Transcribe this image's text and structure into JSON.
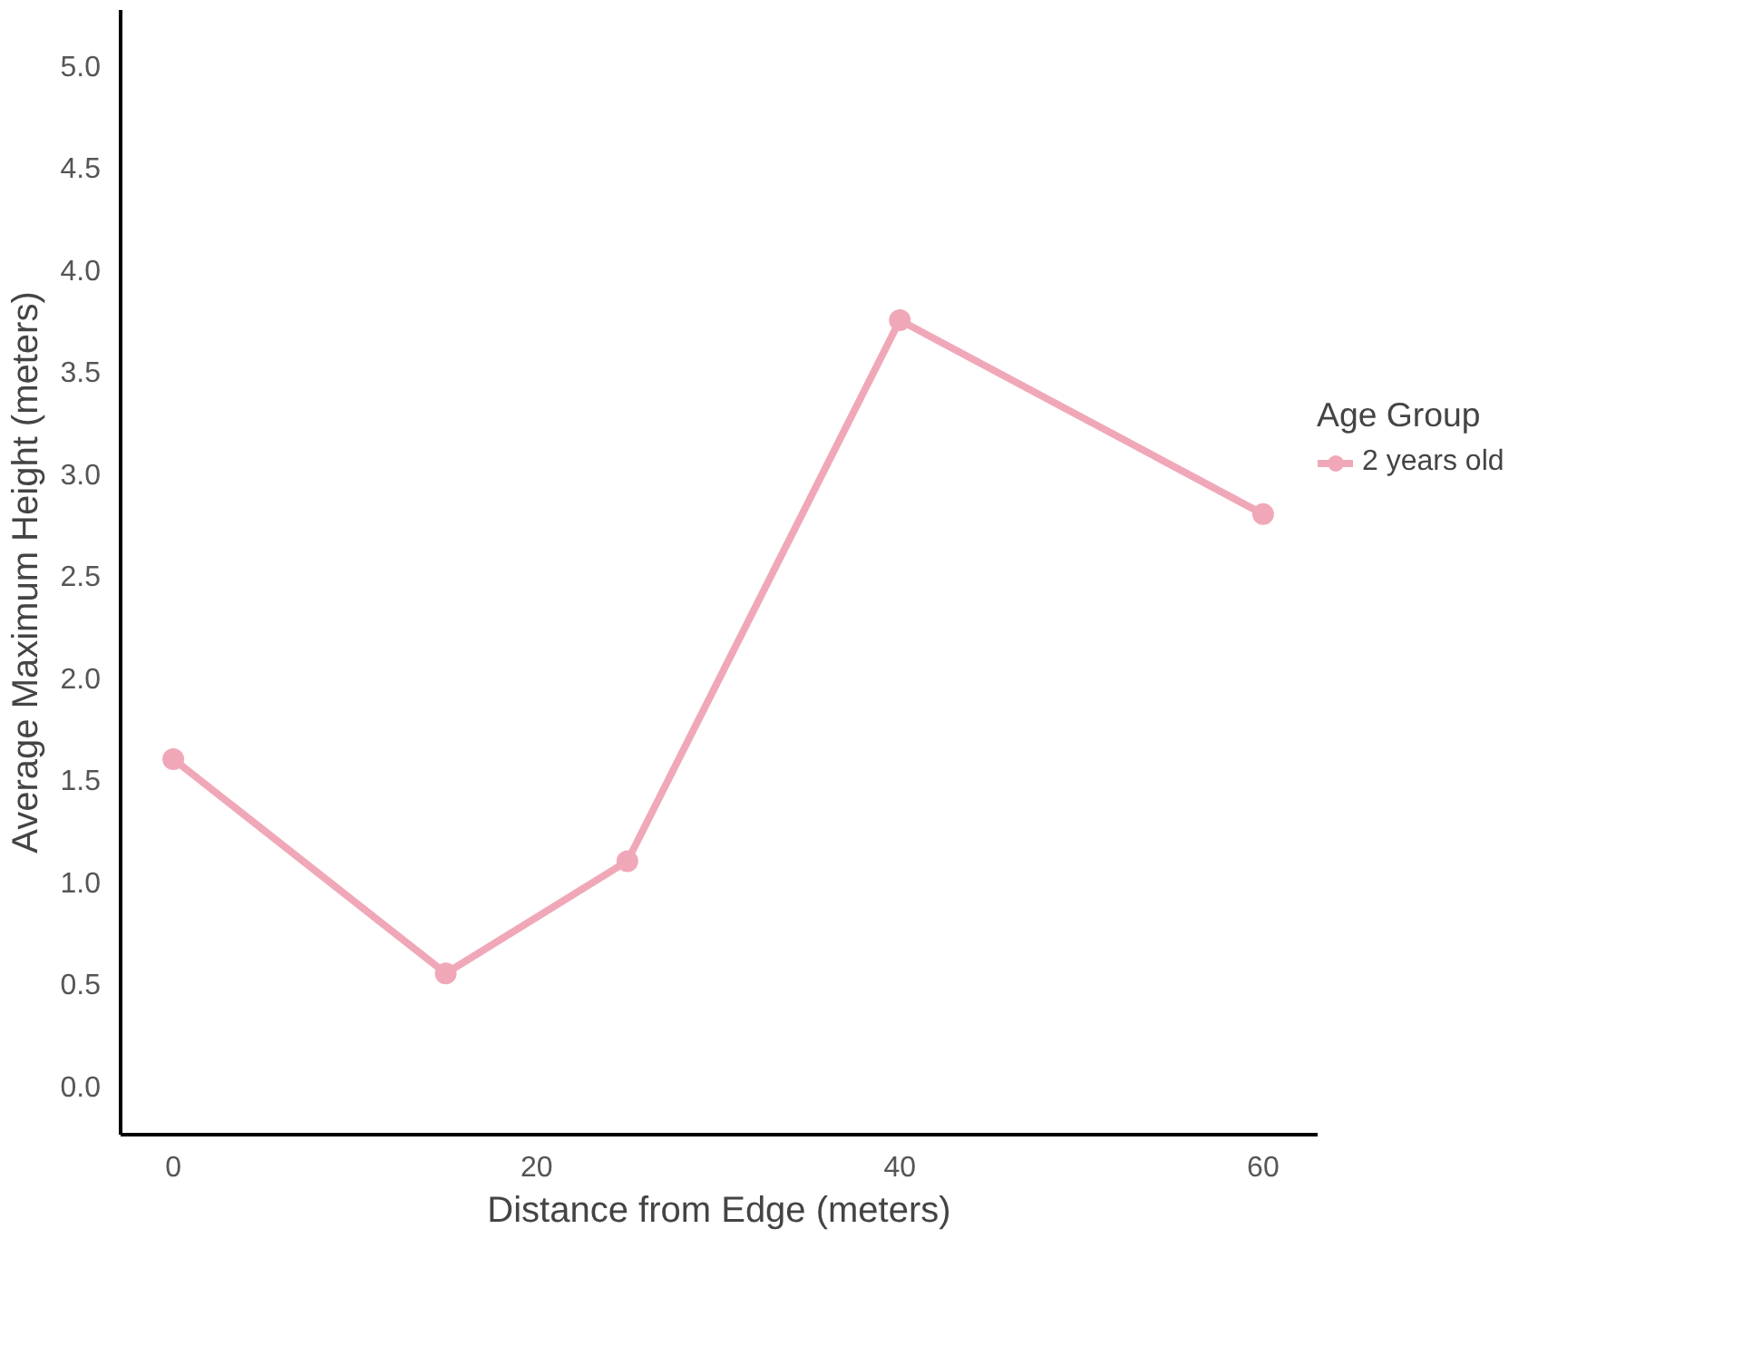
{
  "chart_data": {
    "type": "line",
    "xlabel": "Distance from Edge (meters)",
    "ylabel": "Average Maximum Height (meters)",
    "legend_title": "Age Group",
    "x": [
      0,
      15,
      25,
      40,
      60
    ],
    "series": [
      {
        "name": "2 years old",
        "color": "#f0a8b8",
        "values": [
          1.6,
          0.55,
          1.1,
          3.75,
          2.8
        ]
      }
    ],
    "xlim": [
      -2.9,
      63
    ],
    "ylim": [
      -0.24,
      5.27
    ],
    "xticks": [
      0,
      20,
      40,
      60
    ],
    "yticks": [
      {
        "value": 0,
        "label": "0.0"
      },
      0.5,
      {
        "value": 1,
        "label": "1.0"
      },
      1.5,
      {
        "value": 2,
        "label": "2.0"
      },
      2.5,
      {
        "value": 3,
        "label": "3.0"
      },
      3.5,
      {
        "value": 4,
        "label": "4.0"
      },
      4.5,
      {
        "value": 5,
        "label": "5.0"
      }
    ],
    "grid": false,
    "legend": "right",
    "marker": "circle",
    "line_style": "solid"
  }
}
